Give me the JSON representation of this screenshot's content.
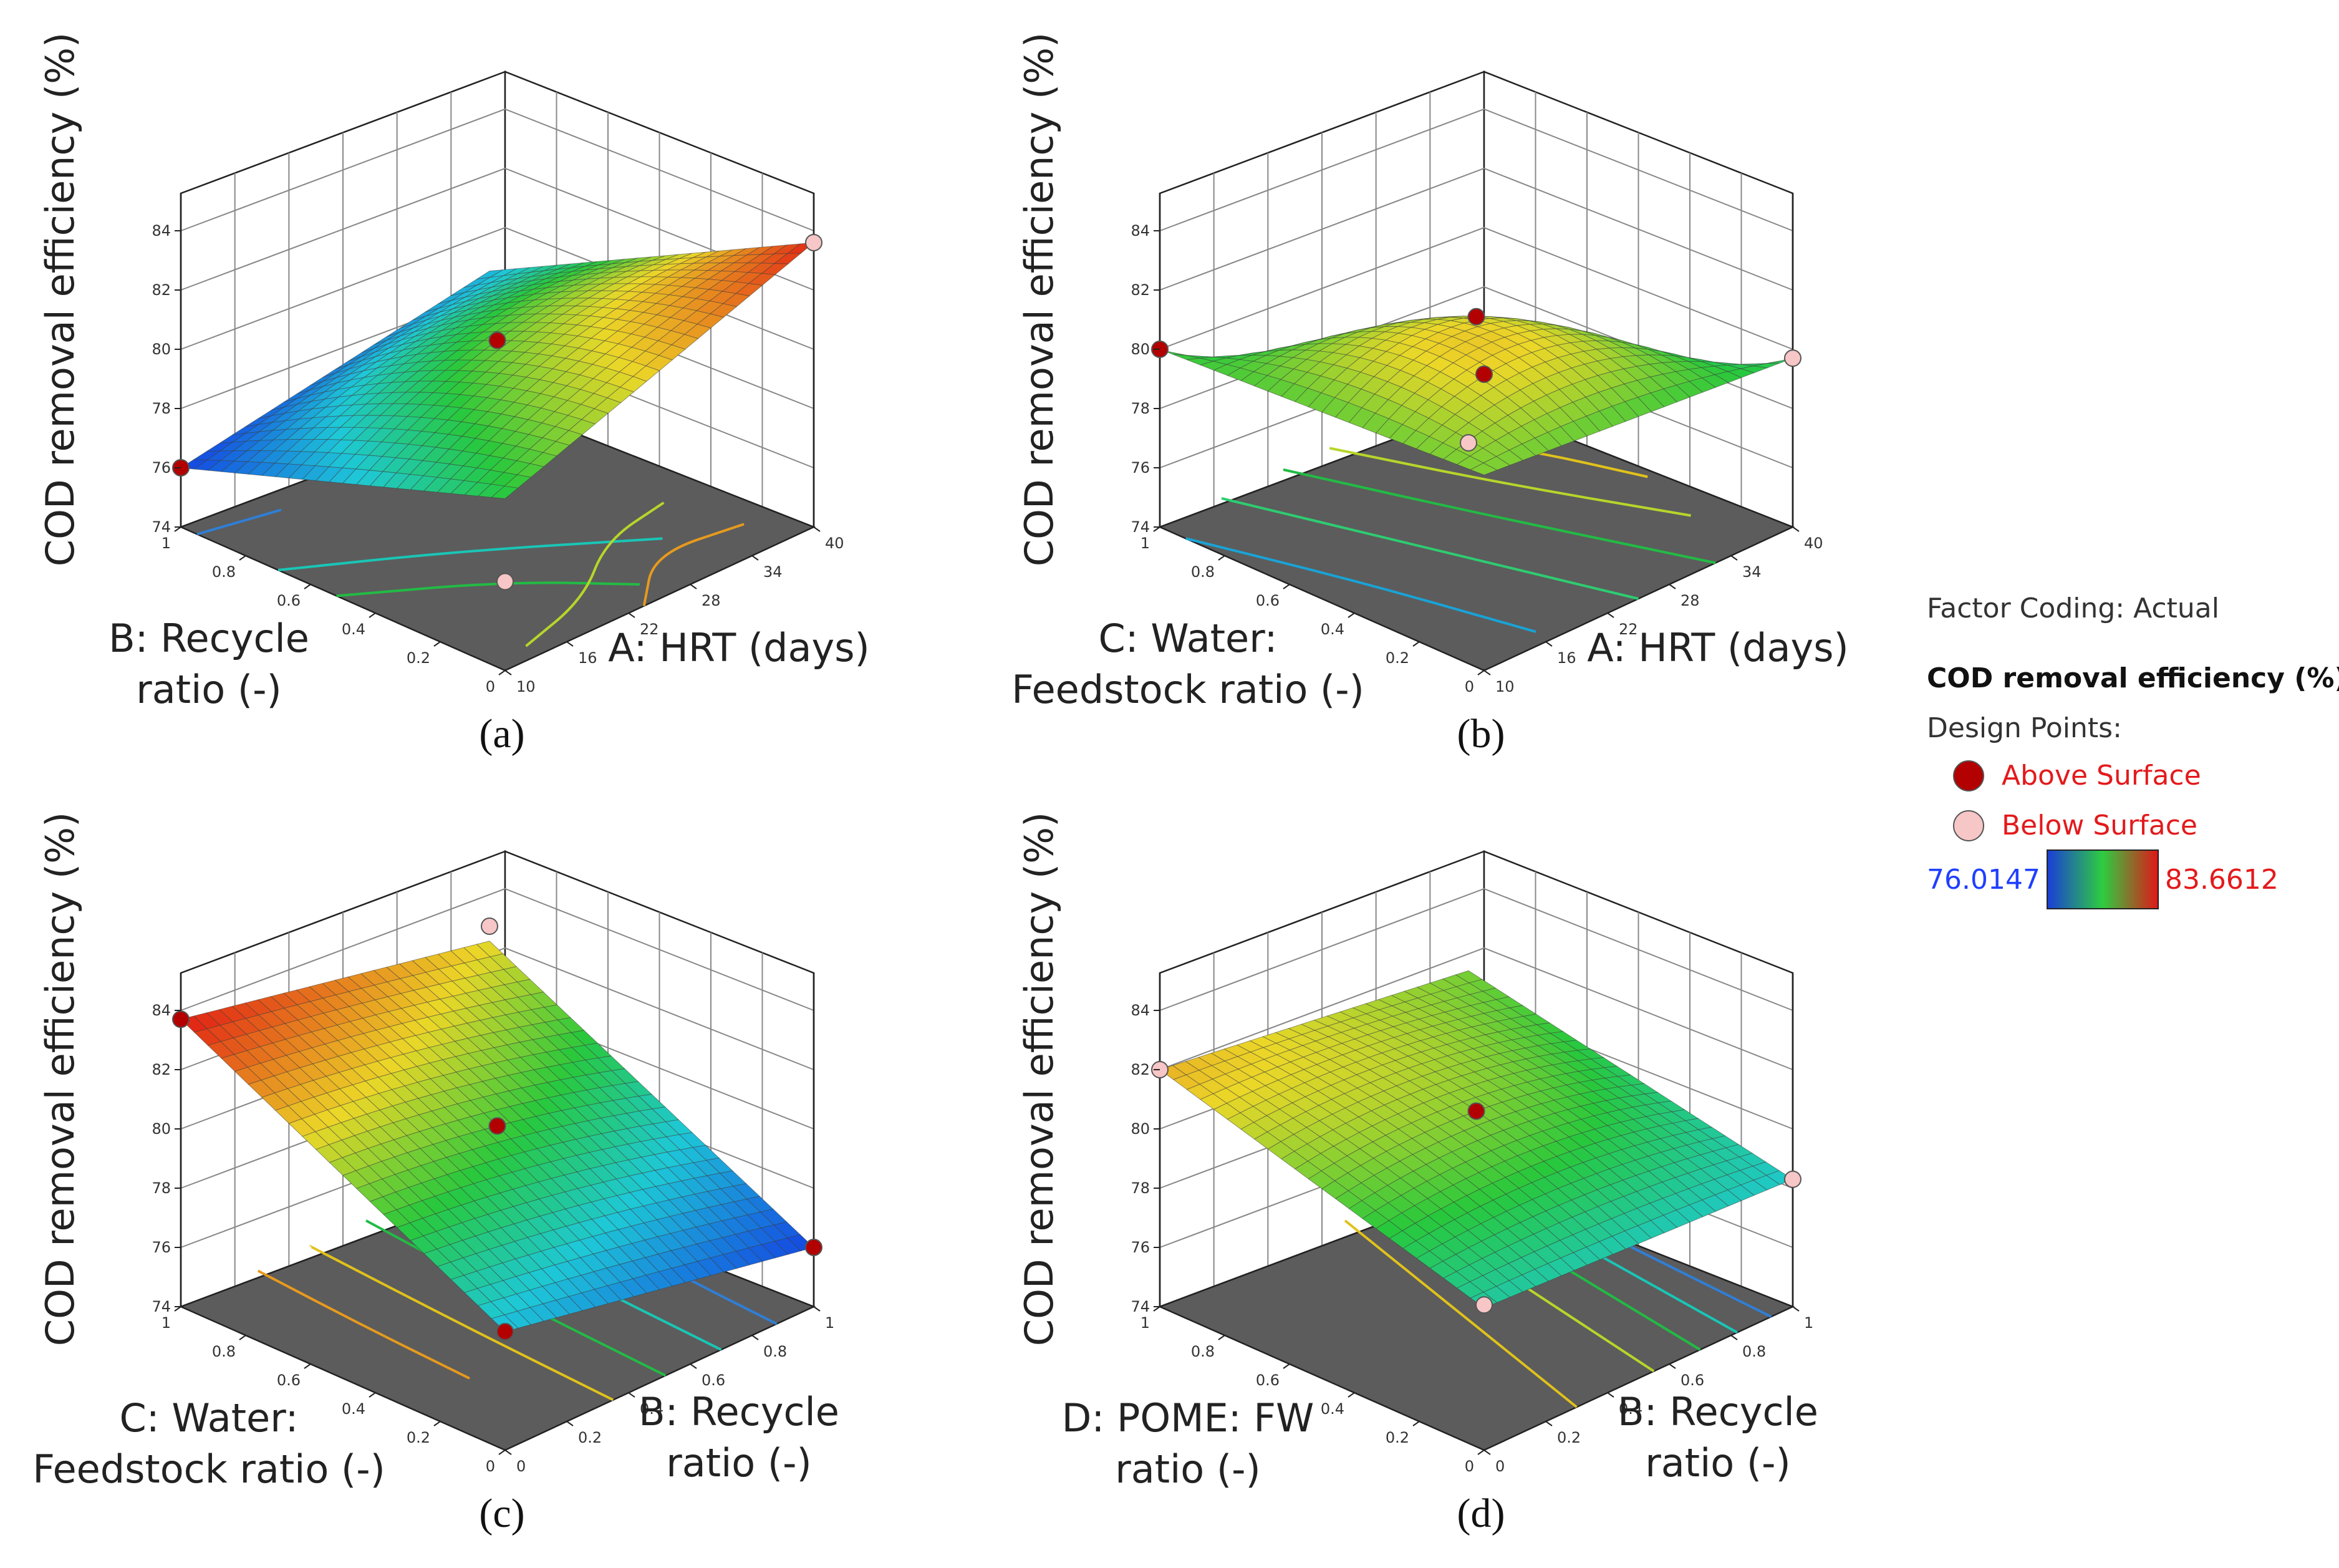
{
  "chart_data": {
    "type": "surface3d",
    "panels": [
      {
        "id": "a",
        "label": "(a)",
        "ylabel": "COD removal efficiency (%)",
        "x_axis_right": {
          "label_lines": [
            "A: HRT (days)"
          ],
          "ticks": [
            "10",
            "16",
            "22",
            "28",
            "34",
            "40"
          ]
        },
        "x_axis_left": {
          "label_lines": [
            "B: Recycle",
            "ratio (-)"
          ],
          "ticks": [
            "0",
            "0.2",
            "0.4",
            "0.6",
            "0.8",
            "1"
          ]
        },
        "z_ticks": [
          "74",
          "76",
          "78",
          "80",
          "82",
          "84"
        ],
        "corners": {
          "bottom": 79.8,
          "left": 76.0,
          "right": 83.6,
          "back": 77.8
        },
        "corner_points": [
          {
            "corner": "left",
            "value": 76.0,
            "position": "above"
          },
          {
            "corner": "bottom",
            "value": 77.0,
            "position": "below"
          },
          {
            "corner": "right",
            "value": 83.6,
            "position": "below"
          }
        ],
        "center_point": {
          "value": 80.3,
          "position": "above"
        },
        "contours": [
          {
            "color": "#2f7fd6",
            "points": [
              [
                0.0,
                0.95
              ],
              [
                0.22,
                0.9
              ]
            ]
          },
          {
            "color": "#19c6b6",
            "points": [
              [
                0.0,
                0.7
              ],
              [
                0.35,
                0.48
              ],
              [
                0.72,
                0.2
              ]
            ]
          },
          {
            "color": "#22bb44",
            "points": [
              [
                0.0,
                0.52
              ],
              [
                0.32,
                0.3
              ],
              [
                0.52,
                0.08
              ]
            ]
          },
          {
            "color": "#b6d62a",
            "points": [
              [
                0.12,
                0.05
              ],
              [
                0.38,
                0.12
              ],
              [
                0.62,
                0.28
              ],
              [
                0.85,
                0.32
              ]
            ]
          },
          {
            "color": "#e79a1d",
            "points": [
              [
                0.45,
                0.0
              ],
              [
                0.65,
                0.16
              ],
              [
                0.9,
                0.12
              ]
            ]
          }
        ]
      },
      {
        "id": "b",
        "label": "(b)",
        "ylabel": "COD removal efficiency (%)",
        "x_axis_right": {
          "label_lines": [
            "A: HRT (days)"
          ],
          "ticks": [
            "10",
            "16",
            "22",
            "28",
            "34",
            "40"
          ]
        },
        "x_axis_left": {
          "label_lines": [
            "C: Water:",
            "Feedstock ratio (-)"
          ],
          "ticks": [
            "0",
            "0.2",
            "0.4",
            "0.6",
            "0.8",
            "1"
          ]
        },
        "z_ticks": [
          "74",
          "76",
          "78",
          "80",
          "82",
          "84"
        ],
        "corners": {
          "bottom": 80.6,
          "left": 80.0,
          "right": 79.7,
          "back": 72.5
        },
        "corner_points": [
          {
            "corner": "left",
            "value": 80.0,
            "position": "above"
          },
          {
            "corner": "bottom",
            "value": 84.0,
            "position": "above"
          },
          {
            "corner": "right",
            "value": 79.7,
            "position": "below"
          },
          {
            "corner": "back",
            "value": 72.0,
            "position": "below"
          }
        ],
        "center_point": {
          "value": 81.1,
          "position": "above"
        },
        "contours": [
          {
            "color": "#e0c21b",
            "points": [
              [
                0.7,
                0.95
              ],
              [
                0.85,
                0.7
              ],
              [
                0.95,
                0.4
              ]
            ]
          },
          {
            "color": "#b6d62a",
            "points": [
              [
                0.55,
                1.0
              ],
              [
                0.7,
                0.6
              ],
              [
                0.88,
                0.2
              ]
            ]
          },
          {
            "color": "#22bb44",
            "points": [
              [
                0.4,
                1.0
              ],
              [
                0.55,
                0.55
              ],
              [
                0.75,
                0.0
              ]
            ]
          },
          {
            "color": "#2ecc71",
            "points": [
              [
                0.2,
                1.0
              ],
              [
                0.35,
                0.5
              ],
              [
                0.5,
                0.0
              ]
            ]
          },
          {
            "color": "#19a3d6",
            "points": [
              [
                0.0,
                0.92
              ],
              [
                0.12,
                0.5
              ],
              [
                0.22,
                0.05
              ]
            ]
          }
        ]
      },
      {
        "id": "c",
        "label": "(c)",
        "ylabel": "COD removal efficiency (%)",
        "x_axis_right": {
          "label_lines": [
            "B: Recycle",
            "ratio (-)"
          ],
          "ticks": [
            "0",
            "0.2",
            "0.4",
            "0.6",
            "0.8",
            "1"
          ]
        },
        "x_axis_left": {
          "label_lines": [
            "C: Water:",
            "Feedstock ratio (-)"
          ],
          "ticks": [
            "0",
            "0.2",
            "0.4",
            "0.6",
            "0.8",
            "1"
          ]
        },
        "z_ticks": [
          "74",
          "76",
          "78",
          "80",
          "82",
          "84"
        ],
        "corners": {
          "bottom": 78.0,
          "left": 83.7,
          "right": 76.0,
          "back": 81.5
        },
        "corner_points": [
          {
            "corner": "left",
            "value": 83.7,
            "position": "above"
          },
          {
            "corner": "bottom",
            "value": 78.0,
            "position": "above"
          },
          {
            "corner": "right",
            "value": 76.0,
            "position": "above"
          },
          {
            "corner": "back",
            "value": 82.0,
            "position": "below"
          }
        ],
        "center_point": {
          "value": 80.1,
          "position": "above"
        },
        "contours": [
          {
            "color": "#e79a1d",
            "points": [
              [
                0.2,
                0.3
              ],
              [
                0.22,
                0.65
              ],
              [
                0.25,
                1.0
              ]
            ]
          },
          {
            "color": "#e0c21b",
            "points": [
              [
                0.35,
                0.0
              ],
              [
                0.38,
                0.5
              ],
              [
                0.42,
                1.0
              ]
            ]
          },
          {
            "color": "#22bb44",
            "points": [
              [
                0.52,
                0.0
              ],
              [
                0.55,
                0.5
              ],
              [
                0.6,
                1.0
              ]
            ]
          },
          {
            "color": "#19c6b6",
            "points": [
              [
                0.7,
                0.0
              ],
              [
                0.73,
                0.5
              ],
              [
                0.78,
                1.0
              ]
            ]
          },
          {
            "color": "#2f7fd6",
            "points": [
              [
                0.88,
                0.0
              ],
              [
                0.9,
                0.3
              ],
              [
                0.93,
                0.6
              ]
            ]
          }
        ]
      },
      {
        "id": "d",
        "label": "(d)",
        "ylabel": "COD removal efficiency (%)",
        "x_axis_right": {
          "label_lines": [
            "B: Recycle",
            "ratio (-)"
          ],
          "ticks": [
            "0",
            "0.2",
            "0.4",
            "0.6",
            "0.8",
            "1"
          ]
        },
        "x_axis_left": {
          "label_lines": [
            "D: POME: FW",
            "ratio (-)"
          ],
          "ticks": [
            "0",
            "0.2",
            "0.4",
            "0.6",
            "0.8",
            "1"
          ]
        },
        "z_ticks": [
          "74",
          "76",
          "78",
          "80",
          "82",
          "84"
        ],
        "corners": {
          "bottom": 78.8,
          "left": 82.0,
          "right": 78.3,
          "back": 80.5
        },
        "corner_points": [
          {
            "corner": "left",
            "value": 82.0,
            "position": "below"
          },
          {
            "corner": "bottom",
            "value": 78.9,
            "position": "below"
          },
          {
            "corner": "right",
            "value": 78.3,
            "position": "below"
          }
        ],
        "center_point": {
          "value": 80.6,
          "position": "above"
        },
        "contours": [
          {
            "color": "#e0c21b",
            "points": [
              [
                0.3,
                0.0
              ],
              [
                0.45,
                0.5
              ],
              [
                0.6,
                1.0
              ]
            ]
          },
          {
            "color": "#b6d62a",
            "points": [
              [
                0.55,
                0.0
              ],
              [
                0.65,
                0.5
              ],
              [
                0.75,
                1.0
              ]
            ]
          },
          {
            "color": "#22bb44",
            "points": [
              [
                0.7,
                0.0
              ],
              [
                0.78,
                0.5
              ],
              [
                0.86,
                1.0
              ]
            ]
          },
          {
            "color": "#19c6b6",
            "points": [
              [
                0.82,
                0.0
              ],
              [
                0.88,
                0.5
              ],
              [
                0.94,
                1.0
              ]
            ]
          },
          {
            "color": "#2f7fd6",
            "points": [
              [
                0.93,
                0.0
              ],
              [
                0.96,
                0.5
              ],
              [
                0.99,
                1.0
              ]
            ]
          }
        ]
      }
    ],
    "z_range": [
      74,
      84
    ],
    "color_scale": {
      "min": 76.0147,
      "max": 83.6612,
      "colors": [
        "#1a3fd6",
        "#2ecc40",
        "#e01818"
      ]
    }
  },
  "legend": {
    "factor_coding": "Factor Coding: Actual",
    "title": "COD removal efficiency (%)",
    "design_points": "Design Points:",
    "above_label": "Above Surface",
    "below_label": "Below Surface",
    "above_color": "#b30000",
    "below_color": "#f7c6c6",
    "min_label": "76.0147",
    "max_label": "83.6612",
    "label_color": "#e31a1c",
    "min_color": "#1f3fff"
  }
}
